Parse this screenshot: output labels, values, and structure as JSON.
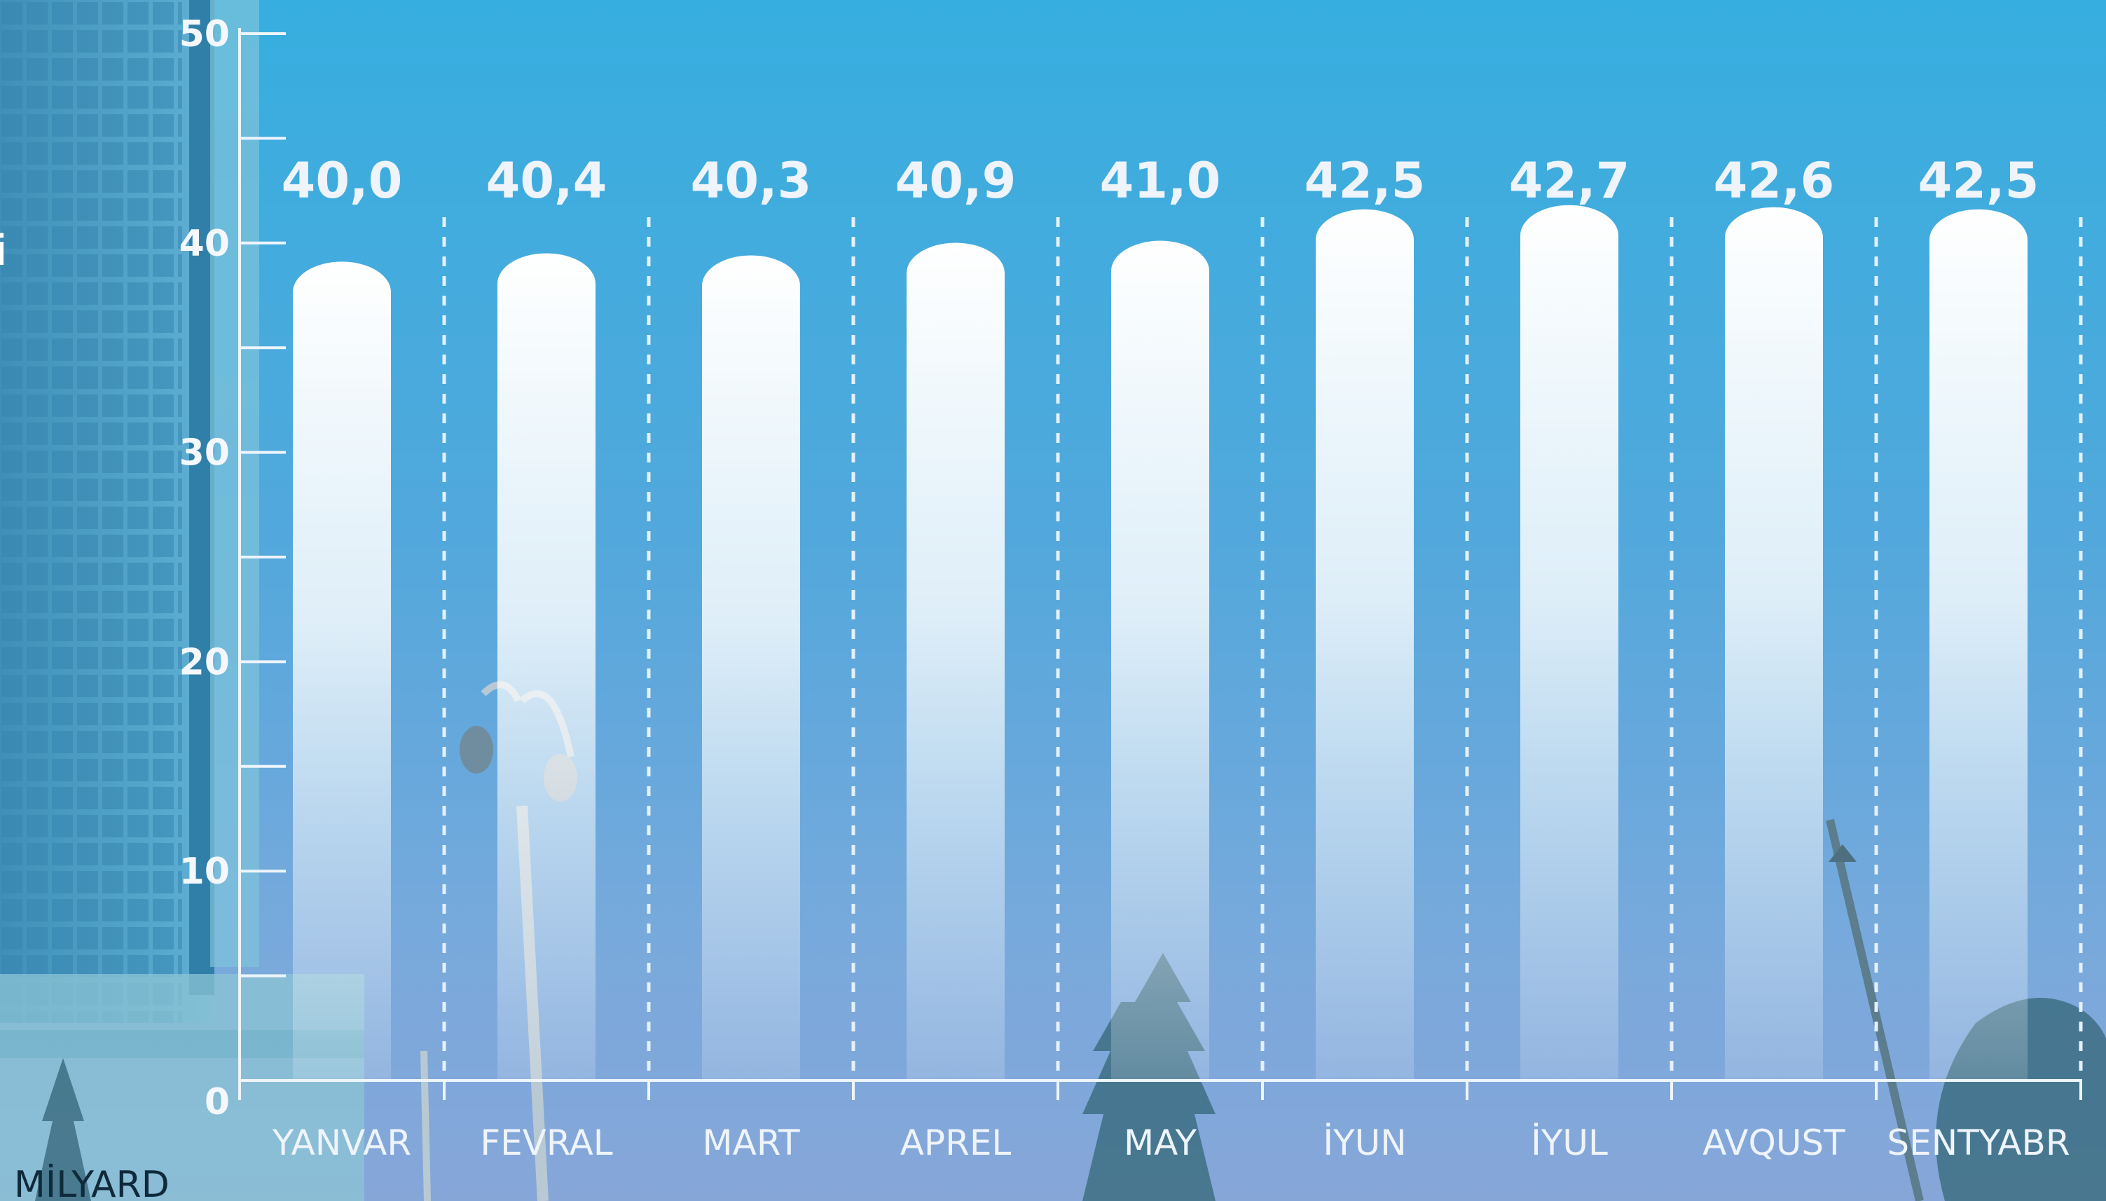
{
  "chart_data": {
    "type": "bar",
    "categories": [
      "YANVAR",
      "FEVRAL",
      "MART",
      "APREL",
      "MAY",
      "İYUN",
      "İYUL",
      "AVQUST",
      "SENTYABR"
    ],
    "series": [
      {
        "values": [
          40.0,
          40.4,
          40.3,
          40.9,
          41.0,
          42.5,
          42.7,
          42.6,
          42.5
        ]
      }
    ],
    "data_labels": [
      "40,0",
      "40,4",
      "40,3",
      "40,9",
      "41,0",
      "42,5",
      "42,7",
      "42,6",
      "42,5"
    ],
    "y_ticks": [
      "0",
      "10",
      "20",
      "30",
      "40",
      "50"
    ],
    "ylim": [
      0,
      50
    ],
    "grid": true,
    "unit_label": "MİLYARD",
    "edge_text": "i"
  },
  "colors": {
    "bar_top": "#ffffff",
    "bar_bottom": "#7fb6e6",
    "axis": "#eef5fb",
    "text": "#eef4fa"
  }
}
